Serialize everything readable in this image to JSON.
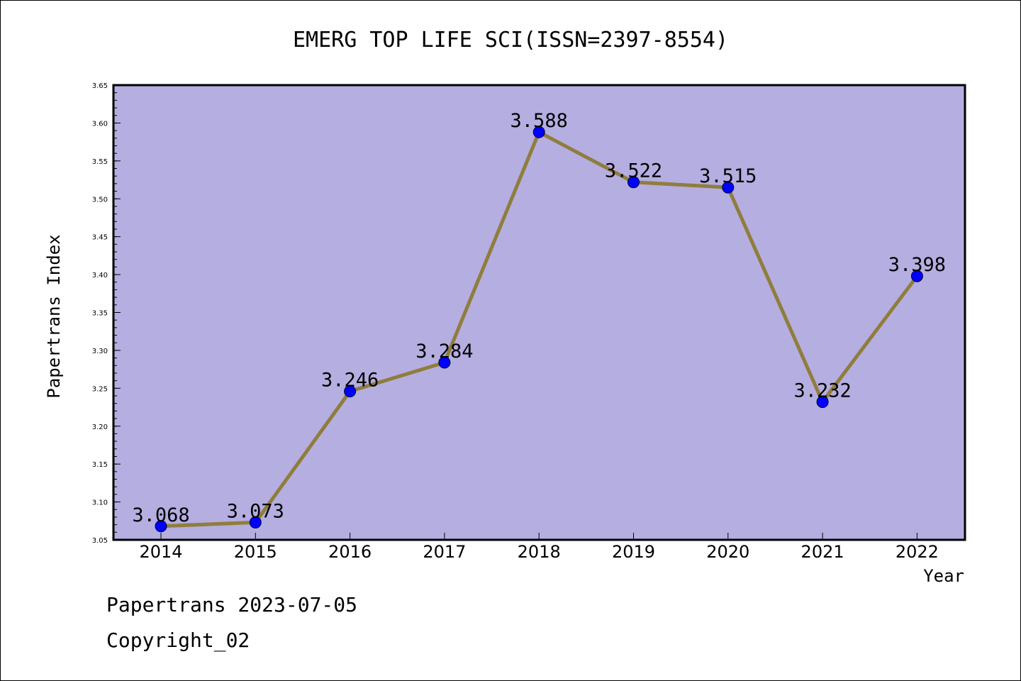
{
  "chart_data": {
    "type": "line",
    "title": "EMERG TOP LIFE SCI(ISSN=2397-8554)",
    "xlabel": "Year",
    "ylabel": "Papertrans Index",
    "categories": [
      "2014",
      "2015",
      "2016",
      "2017",
      "2018",
      "2019",
      "2020",
      "2021",
      "2022"
    ],
    "series": [
      {
        "values": [
          3.068,
          3.073,
          3.246,
          3.284,
          3.588,
          3.522,
          3.515,
          3.232,
          3.398
        ]
      }
    ],
    "point_labels": [
      "3.068",
      "3.073",
      "3.246",
      "3.284",
      "3.588",
      "3.522",
      "3.515",
      "3.232",
      "3.398"
    ],
    "ylim": [
      3.05,
      3.65
    ],
    "yticks": [
      "3.05",
      "3.10",
      "3.15",
      "3.20",
      "3.25",
      "3.30",
      "3.35",
      "3.40",
      "3.45",
      "3.50",
      "3.55",
      "3.60",
      "3.65"
    ],
    "colors": {
      "plot_bg": "#b5aee1",
      "line": "#8f7d3c",
      "marker": "#0000ff"
    }
  },
  "footer": {
    "line1": "Papertrans 2023-07-05",
    "line2": "Copyright_02"
  }
}
